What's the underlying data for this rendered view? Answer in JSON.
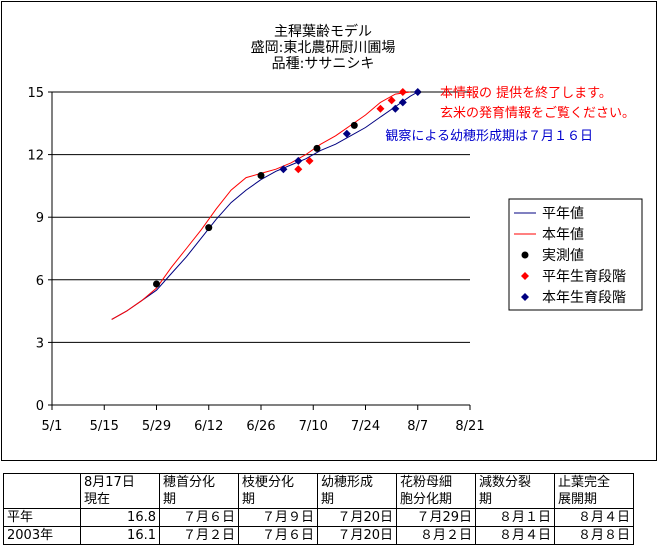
{
  "chart_data": {
    "type": "line",
    "title": [
      "主稈葉齢モデル",
      "盛岡:東北農研厨川圃場",
      "品種:ササニシキ"
    ],
    "xlabel": "",
    "ylabel": "",
    "x_ticks": [
      0,
      14,
      28,
      42,
      56,
      70,
      84,
      98,
      112
    ],
    "x_tick_labels": [
      "5/1",
      "5/15",
      "5/29",
      "6/12",
      "6/26",
      "7/10",
      "7/24",
      "8/7",
      "8/21"
    ],
    "xlim": [
      0,
      112
    ],
    "y_ticks": [
      0,
      3,
      6,
      9,
      12,
      15
    ],
    "ylim": [
      0,
      15
    ],
    "grid": "horizontal",
    "legend_position": "right",
    "series": [
      {
        "name": "平年値",
        "kind": "line",
        "color": "#000080",
        "points": [
          [
            16,
            4.1
          ],
          [
            20,
            4.5
          ],
          [
            24,
            5.0
          ],
          [
            28,
            5.5
          ],
          [
            32,
            6.3
          ],
          [
            36,
            7.1
          ],
          [
            40,
            8.0
          ],
          [
            44,
            8.9
          ],
          [
            48,
            9.7
          ],
          [
            52,
            10.3
          ],
          [
            56,
            10.8
          ],
          [
            60,
            11.2
          ],
          [
            64,
            11.5
          ],
          [
            68,
            11.8
          ],
          [
            72,
            12.2
          ],
          [
            76,
            12.5
          ],
          [
            80,
            12.9
          ],
          [
            84,
            13.3
          ],
          [
            88,
            13.8
          ],
          [
            92,
            14.3
          ],
          [
            96,
            14.8
          ],
          [
            98,
            15.0
          ]
        ]
      },
      {
        "name": "本年値",
        "kind": "line",
        "color": "#ff0000",
        "points": [
          [
            16,
            4.1
          ],
          [
            20,
            4.5
          ],
          [
            24,
            5.0
          ],
          [
            28,
            5.6
          ],
          [
            32,
            6.6
          ],
          [
            36,
            7.5
          ],
          [
            40,
            8.4
          ],
          [
            44,
            9.4
          ],
          [
            48,
            10.3
          ],
          [
            52,
            10.9
          ],
          [
            56,
            11.1
          ],
          [
            60,
            11.3
          ],
          [
            64,
            11.6
          ],
          [
            68,
            12.0
          ],
          [
            72,
            12.5
          ],
          [
            76,
            12.9
          ],
          [
            80,
            13.4
          ],
          [
            84,
            13.9
          ],
          [
            88,
            14.5
          ],
          [
            92,
            14.9
          ],
          [
            96,
            15.0
          ]
        ]
      },
      {
        "name": "実測値",
        "kind": "points",
        "marker": "circle",
        "color": "#000000",
        "points": [
          [
            28,
            5.8
          ],
          [
            42,
            8.5
          ],
          [
            56,
            11.0
          ],
          [
            71,
            12.3
          ],
          [
            81,
            13.4
          ]
        ]
      },
      {
        "name": "平年生育段階",
        "kind": "points",
        "marker": "diamond",
        "color": "#ff0000",
        "points": [
          [
            66,
            11.3
          ],
          [
            69,
            11.7
          ],
          [
            88,
            14.2
          ],
          [
            91,
            14.6
          ],
          [
            94,
            15.0
          ]
        ]
      },
      {
        "name": "本年生育段階",
        "kind": "points",
        "marker": "diamond",
        "color": "#000080",
        "points": [
          [
            62,
            11.3
          ],
          [
            66,
            11.7
          ],
          [
            79,
            13.0
          ],
          [
            92,
            14.2
          ],
          [
            94,
            14.5
          ],
          [
            98,
            15.0
          ]
        ]
      }
    ],
    "annotations": [
      {
        "text": "本情報の 提供を終了します。",
        "color": "#ff0000",
        "x": 100,
        "y": 15.0,
        "line": 0
      },
      {
        "text": "玄米の発育情報をご覧ください。",
        "color": "#ff0000",
        "x": 100,
        "y": 15.0,
        "line": 1
      },
      {
        "text": "観察による幼穂形成期は７月１６日",
        "color": "#0000cc",
        "x": 100,
        "y": 15.0,
        "line": 2
      }
    ]
  },
  "table": {
    "headers": [
      "",
      "8月17日\n現在",
      "穂首分化\n期",
      "枝梗分化\n期",
      "幼穂形成\n期",
      "花粉母細\n胞分化期",
      "減数分裂\n期",
      "止葉完全\n展開期"
    ],
    "rows": [
      {
        "label": "平年",
        "cells": [
          "16.8",
          "７月６日",
          "７月９日",
          "７月20日",
          "７月29日",
          "８月１日",
          "８月４日"
        ]
      },
      {
        "label": "2003年",
        "cells": [
          "16.1",
          "７月２日",
          "７月６日",
          "７月20日",
          "８月２日",
          "８月４日",
          "８月８日"
        ]
      }
    ]
  }
}
